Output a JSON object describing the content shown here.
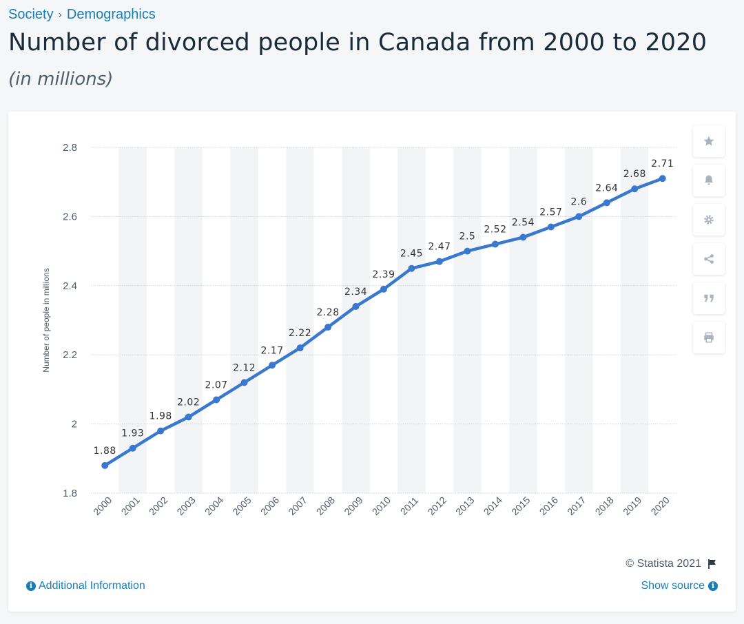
{
  "breadcrumb": {
    "parent": "Society",
    "current": "Demographics"
  },
  "page": {
    "title": "Number of divorced people in Canada from 2000 to 2020",
    "subtitle": "(in millions)"
  },
  "colors": {
    "series": "#3a78cf",
    "link": "#1a7db6",
    "grid": "#cfd5db",
    "band": "#f3f4f6"
  },
  "toolbar": {
    "buttons": [
      {
        "name": "favorite-button",
        "icon": "star-icon"
      },
      {
        "name": "notification-button",
        "icon": "bell-icon"
      },
      {
        "name": "settings-button",
        "icon": "gear-icon"
      },
      {
        "name": "share-button",
        "icon": "share-icon"
      },
      {
        "name": "cite-button",
        "icon": "quote-icon"
      },
      {
        "name": "print-button",
        "icon": "print-icon"
      }
    ]
  },
  "footer": {
    "credit": "© Statista 2021",
    "additional_info": "Additional Information",
    "show_source": "Show source"
  },
  "chart_data": {
    "type": "line",
    "title": "Number of divorced people in Canada from 2000 to 2020",
    "subtitle": "(in millions)",
    "ylabel": "Number of people in millions",
    "xlabel": "",
    "ylim": [
      1.8,
      2.8
    ],
    "yticks": [
      1.8,
      2,
      2.2,
      2.4,
      2.6,
      2.8
    ],
    "grid": true,
    "legend": "none",
    "categories": [
      "2000",
      "2001",
      "2002",
      "2003",
      "2004",
      "2005",
      "2006",
      "2007",
      "2008",
      "2009",
      "2010",
      "2011",
      "2012",
      "2013",
      "2014",
      "2015",
      "2016",
      "2017",
      "2018",
      "2019",
      "2020"
    ],
    "values": [
      1.88,
      1.93,
      1.98,
      2.02,
      2.07,
      2.12,
      2.17,
      2.22,
      2.28,
      2.34,
      2.39,
      2.45,
      2.47,
      2.5,
      2.52,
      2.54,
      2.57,
      2.6,
      2.64,
      2.68,
      2.71
    ]
  }
}
